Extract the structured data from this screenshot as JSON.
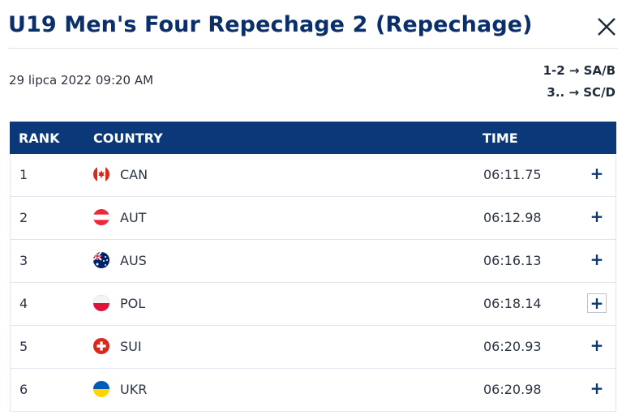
{
  "header": {
    "title": "U19 Men's Four Repechage 2 (Repechage)",
    "date": "29 lipca 2022 09:20 AM",
    "progression": [
      "1-2 → SA/B",
      "3.. → SC/D"
    ]
  },
  "table": {
    "columns": {
      "rank": "RANK",
      "country": "COUNTRY",
      "time": "TIME"
    },
    "rows": [
      {
        "rank": "1",
        "country": "CAN",
        "time": "06:11.75",
        "flag_icon": "canada-flag-icon"
      },
      {
        "rank": "2",
        "country": "AUT",
        "time": "06:12.98",
        "flag_icon": "austria-flag-icon"
      },
      {
        "rank": "3",
        "country": "AUS",
        "time": "06:16.13",
        "flag_icon": "australia-flag-icon"
      },
      {
        "rank": "4",
        "country": "POL",
        "time": "06:18.14",
        "flag_icon": "poland-flag-icon"
      },
      {
        "rank": "5",
        "country": "SUI",
        "time": "06:20.93",
        "flag_icon": "switzerland-flag-icon"
      },
      {
        "rank": "6",
        "country": "UKR",
        "time": "06:20.98",
        "flag_icon": "ukraine-flag-icon"
      }
    ],
    "expand_label": "+"
  },
  "colors": {
    "title": "#0b2f6b",
    "header_bg": "#0b3878"
  }
}
